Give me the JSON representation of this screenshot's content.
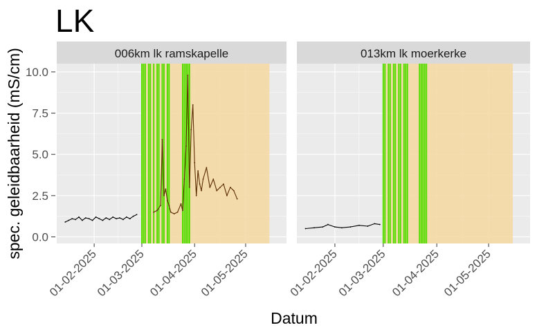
{
  "title": "LK",
  "chart_data": {
    "type": "line",
    "xlabel": "Datum",
    "ylabel": "spec. geleidbaarheid (mS/cm)",
    "ylim": [
      -0.4,
      10.5
    ],
    "yticks": [
      0.0,
      2.5,
      5.0,
      7.5,
      10.0
    ],
    "ytick_labels": [
      "0.0",
      "2.5",
      "5.0",
      "7.5",
      "10.0"
    ],
    "xlim": [
      "2025-01-10",
      "2025-05-25"
    ],
    "xticks": [
      "2025-02-01",
      "2025-03-01",
      "2025-04-01",
      "2025-05-01"
    ],
    "xtick_labels": [
      "01-02-2025",
      "01-03-2025",
      "01-04-2025",
      "01-05-2025"
    ],
    "grid": true,
    "colors": {
      "panel_bg": "#ebebeb",
      "strip_bg": "#d9d9d9",
      "grid": "#ffffff",
      "orange_band": "#f5d9a5",
      "green_line": "#55dd00",
      "series_line": "#000000",
      "series_brown": "#5a2d00"
    },
    "panels": [
      {
        "label": "006km lk ramskapelle",
        "orange_band": [
          "2025-03-01",
          "2025-05-15"
        ],
        "green_events": [
          "2025-03-01",
          "2025-03-02",
          "2025-03-03",
          "2025-03-05",
          "2025-03-06",
          "2025-03-08",
          "2025-03-10",
          "2025-03-11",
          "2025-03-13",
          "2025-03-14",
          "2025-03-16",
          "2025-03-17",
          "2025-03-25",
          "2025-03-26",
          "2025-03-27",
          "2025-03-28",
          "2025-03-29"
        ],
        "series": {
          "segments": [
            {
              "x": [
                "2025-01-15",
                "2025-01-17",
                "2025-01-19",
                "2025-01-21",
                "2025-01-23",
                "2025-01-25",
                "2025-01-27",
                "2025-01-29",
                "2025-01-31",
                "2025-02-02",
                "2025-02-04",
                "2025-02-06",
                "2025-02-08",
                "2025-02-10",
                "2025-02-12",
                "2025-02-14",
                "2025-02-16",
                "2025-02-18",
                "2025-02-20",
                "2025-02-22",
                "2025-02-24",
                "2025-02-26"
              ],
              "y": [
                0.9,
                1.0,
                1.1,
                1.05,
                1.2,
                1.0,
                1.15,
                1.1,
                1.0,
                1.2,
                1.1,
                1.0,
                1.15,
                1.05,
                1.2,
                1.1,
                1.15,
                1.05,
                1.2,
                1.1,
                1.25,
                1.35
              ],
              "color": "#000000"
            },
            {
              "x": [
                "2025-03-08",
                "2025-03-10",
                "2025-03-12",
                "2025-03-13",
                "2025-03-14",
                "2025-03-15",
                "2025-03-16",
                "2025-03-17",
                "2025-03-18",
                "2025-03-20",
                "2025-03-22",
                "2025-03-24",
                "2025-03-25",
                "2025-03-26",
                "2025-03-27",
                "2025-03-28",
                "2025-03-29",
                "2025-03-30",
                "2025-03-31",
                "2025-04-01",
                "2025-04-02",
                "2025-04-03",
                "2025-04-04",
                "2025-04-05",
                "2025-04-06",
                "2025-04-08",
                "2025-04-10",
                "2025-04-12",
                "2025-04-14",
                "2025-04-16",
                "2025-04-18",
                "2025-04-20",
                "2025-04-22",
                "2025-04-24",
                "2025-04-26"
              ],
              "y": [
                1.5,
                1.6,
                1.9,
                5.9,
                2.5,
                2.9,
                2.2,
                1.9,
                1.5,
                1.4,
                1.5,
                2.0,
                1.6,
                3.5,
                5.5,
                9.8,
                3.0,
                6.5,
                8.0,
                4.5,
                2.5,
                4.0,
                3.2,
                2.8,
                3.5,
                4.2,
                3.0,
                3.5,
                2.8,
                3.0,
                3.2,
                2.5,
                3.0,
                2.8,
                2.3
              ],
              "color": "#5a2d00"
            }
          ]
        }
      },
      {
        "label": "013km lk moerkerke",
        "orange_band": [
          "2025-03-01",
          "2025-05-15"
        ],
        "green_events": [
          "2025-03-01",
          "2025-03-02",
          "2025-03-04",
          "2025-03-05",
          "2025-03-07",
          "2025-03-08",
          "2025-03-10",
          "2025-03-11",
          "2025-03-13",
          "2025-03-14",
          "2025-03-15",
          "2025-03-22",
          "2025-03-23",
          "2025-03-24",
          "2025-03-25",
          "2025-03-26"
        ],
        "series": {
          "segments": [
            {
              "x": [
                "2025-01-15",
                "2025-01-20",
                "2025-01-25",
                "2025-01-28",
                "2025-02-01",
                "2025-02-05",
                "2025-02-10",
                "2025-02-15",
                "2025-02-20",
                "2025-02-24",
                "2025-02-27"
              ],
              "y": [
                0.5,
                0.55,
                0.6,
                0.75,
                0.6,
                0.55,
                0.6,
                0.7,
                0.65,
                0.8,
                0.75
              ],
              "color": "#000000"
            }
          ]
        }
      }
    ]
  }
}
